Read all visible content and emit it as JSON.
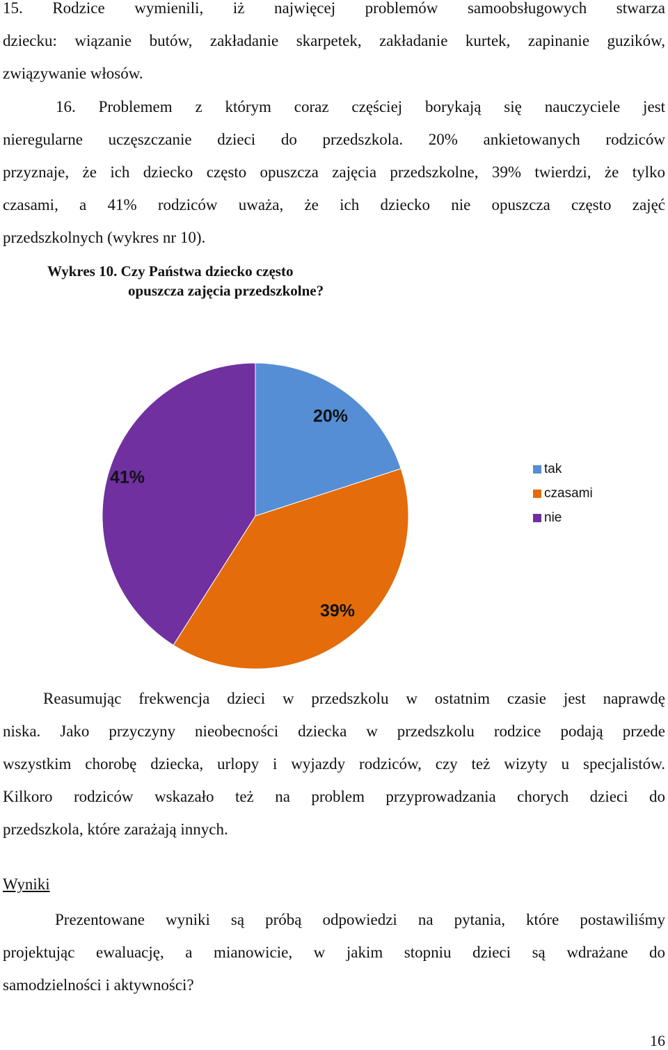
{
  "paragraphs": {
    "p15": [
      "15. Rodzice wymienili, iż najwięcej problemów samoobsługowych stwarza",
      "dziecku: wiązanie butów, zakładanie skarpetek, zakładanie kurtek, zapinanie guzików,",
      "związywanie włosów."
    ],
    "p16": [
      "16. Problemem z którym coraz częściej borykają się nauczyciele jest",
      "nieregularne uczęszczanie dzieci do przedszkola. 20% ankietowanych rodziców",
      "przyznaje, że ich dziecko często opuszcza zajęcia przedszkolne, 39% twierdzi, że tylko",
      "czasami, a 41% rodziców uważa, że ich dziecko nie opuszcza często zajęć",
      "przedszkolnych (wykres nr 10)."
    ],
    "summary": [
      "Reasumując frekwencja dzieci w przedszkolu w ostatnim czasie jest naprawdę",
      "niska. Jako przyczyny nieobecności dziecka w przedszkolu rodzice podają przede",
      "wszystkim chorobę dziecka, urlopy i wyjazdy rodziców, czy też wizyty u specjalistów.",
      "Kilkoro rodziców wskazało też na problem przyprowadzania chorych dzieci do",
      "przedszkola, które zarażają innych."
    ],
    "results": [
      "Prezentowane wyniki są próbą odpowiedzi na pytania, które postawiliśmy",
      "projektując ewaluację, a mianowicie, w jakim stopniu dzieci są wdrażane do",
      "samodzielności i aktywności?"
    ]
  },
  "caption": {
    "line1": "Wykres 10. Czy Państwa dziecko często",
    "line2": "opuszcza zajęcia przedszkolne?"
  },
  "heading": "Wyniki",
  "page_number": "16",
  "chart_data": {
    "type": "pie",
    "categories": [
      "tak",
      "czasami",
      "nie"
    ],
    "values": [
      20,
      39,
      41
    ],
    "labels": [
      "20%",
      "39%",
      "41%"
    ],
    "colors": [
      "#558ED5",
      "#E46C0A",
      "#7030A0"
    ],
    "legend": "right",
    "title": ""
  }
}
